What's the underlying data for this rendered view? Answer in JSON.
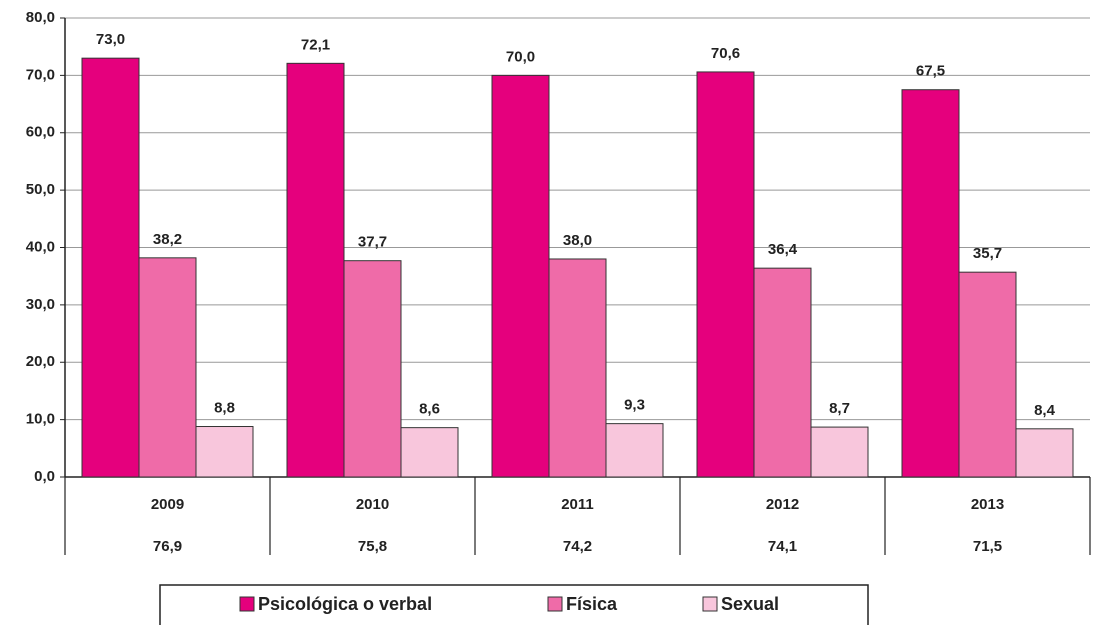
{
  "chart_data": {
    "type": "bar",
    "categories": [
      "2009",
      "2010",
      "2011",
      "2012",
      "2013"
    ],
    "totals": [
      76.9,
      75.8,
      74.2,
      74.1,
      71.5
    ],
    "total_labels": [
      "76,9",
      "75,8",
      "74,2",
      "74,1",
      "71,5"
    ],
    "series": [
      {
        "name": "Psicológica o verbal",
        "color": "#e5007d",
        "values": [
          73.0,
          72.1,
          70.0,
          70.6,
          67.5
        ],
        "value_labels": [
          "73,0",
          "72,1",
          "70,0",
          "70,6",
          "67,5"
        ]
      },
      {
        "name": "Física",
        "color": "#ef6ba8",
        "values": [
          38.2,
          37.7,
          38.0,
          36.4,
          35.7
        ],
        "value_labels": [
          "38,2",
          "37,7",
          "38,0",
          "36,4",
          "35,7"
        ]
      },
      {
        "name": "Sexual",
        "color": "#f8c6dc",
        "values": [
          8.8,
          8.6,
          9.3,
          8.7,
          8.4
        ],
        "value_labels": [
          "8,8",
          "8,6",
          "9,3",
          "8,7",
          "8,4"
        ]
      }
    ],
    "ylim": [
      0,
      80
    ],
    "yticks": [
      {
        "value": 0,
        "label": "0,0"
      },
      {
        "value": 10,
        "label": "10,0"
      },
      {
        "value": 20,
        "label": "20,0"
      },
      {
        "value": 30,
        "label": "30,0"
      },
      {
        "value": 40,
        "label": "40,0"
      },
      {
        "value": 50,
        "label": "50,0"
      },
      {
        "value": 60,
        "label": "60,0"
      },
      {
        "value": 70,
        "label": "70,0"
      },
      {
        "value": 80,
        "label": "80,0"
      }
    ],
    "grid": true,
    "legend": "bottom"
  }
}
